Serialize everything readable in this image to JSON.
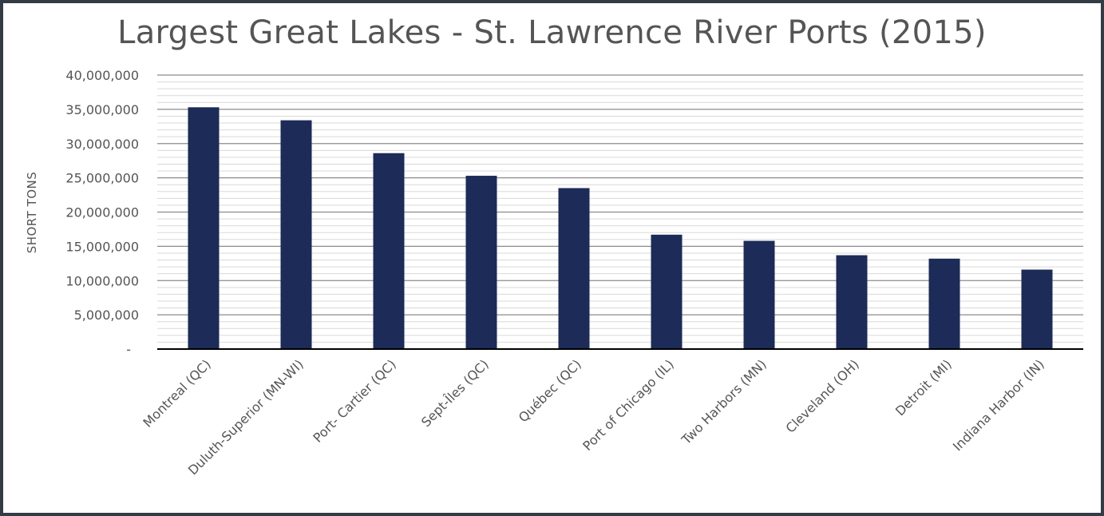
{
  "chart_data": {
    "type": "bar",
    "title": "Largest Great Lakes - St. Lawrence River Ports (2015)",
    "ylabel": "SHORT TONS",
    "xlabel": "",
    "ylim": [
      0,
      40000000
    ],
    "yticks": [
      0,
      5000000,
      10000000,
      15000000,
      20000000,
      25000000,
      30000000,
      35000000,
      40000000
    ],
    "ytick_labels": [
      "-",
      "5,000,000",
      "10,000,000",
      "15,000,000",
      "20,000,000",
      "25,000,000",
      "30,000,000",
      "35,000,000",
      "40,000,000"
    ],
    "minor_gridlines_per_major": 5,
    "grid": true,
    "legend": "none",
    "categories": [
      "Montreal (QC)",
      "Duluth-Superior (MN-WI)",
      "Port- Cartier (QC)",
      "Sept-Îles (QC)",
      "Québec (QC)",
      "Port of Chicago (IL)",
      "Two Harbors (MN)",
      "Cleveland (OH)",
      "Detroit (MI)",
      "Indiana Harbor (IN)"
    ],
    "values": [
      35300000,
      33400000,
      28600000,
      25300000,
      23500000,
      16700000,
      15800000,
      13700000,
      13200000,
      11600000
    ],
    "colors": {
      "bar": "#1c2b58",
      "major_grid": "#8c8c8c",
      "minor_grid": "#d9d9d9",
      "axis": "#000000",
      "text": "#555555",
      "frame": "#333b46"
    }
  }
}
